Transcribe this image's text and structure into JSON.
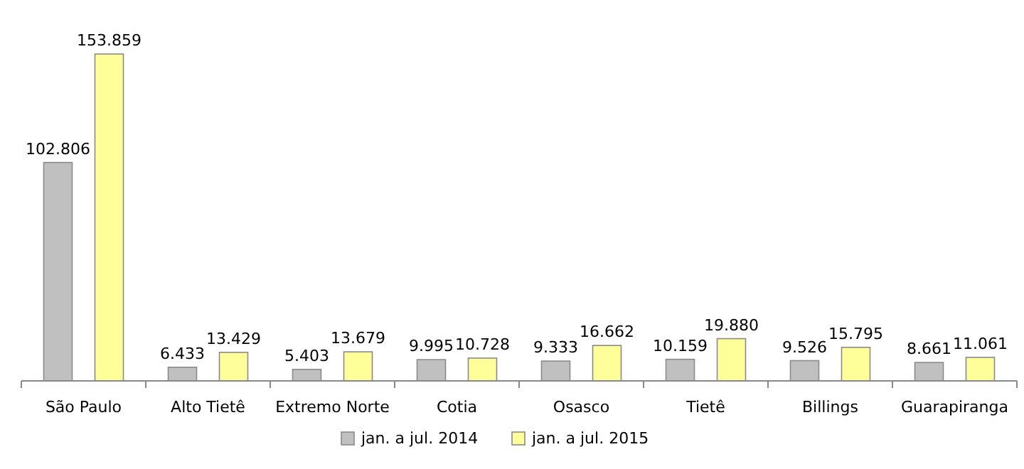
{
  "chart_data": {
    "type": "bar",
    "categories": [
      "São Paulo",
      "Alto Tietê",
      "Extremo Norte",
      "Cotia",
      "Osasco",
      "Tietê",
      "Billings",
      "Guarapiranga"
    ],
    "series": [
      {
        "name": "jan. a jul. 2014",
        "color": "#c0c0c0",
        "values": [
          102806,
          6433,
          5403,
          9995,
          9333,
          10159,
          9526,
          8661
        ],
        "value_labels": [
          "102.806",
          "6.433",
          "5.403",
          "9.995",
          "9.333",
          "10.159",
          "9.526",
          "8.661"
        ]
      },
      {
        "name": "jan. a jul. 2015",
        "color": "#ffff99",
        "values": [
          153859,
          13429,
          13679,
          10728,
          16662,
          19880,
          15795,
          11061
        ],
        "value_labels": [
          "153.859",
          "13.429",
          "13.679",
          "10.728",
          "16.662",
          "19.880",
          "15.795",
          "11.061"
        ]
      }
    ],
    "legend": "bottom"
  }
}
